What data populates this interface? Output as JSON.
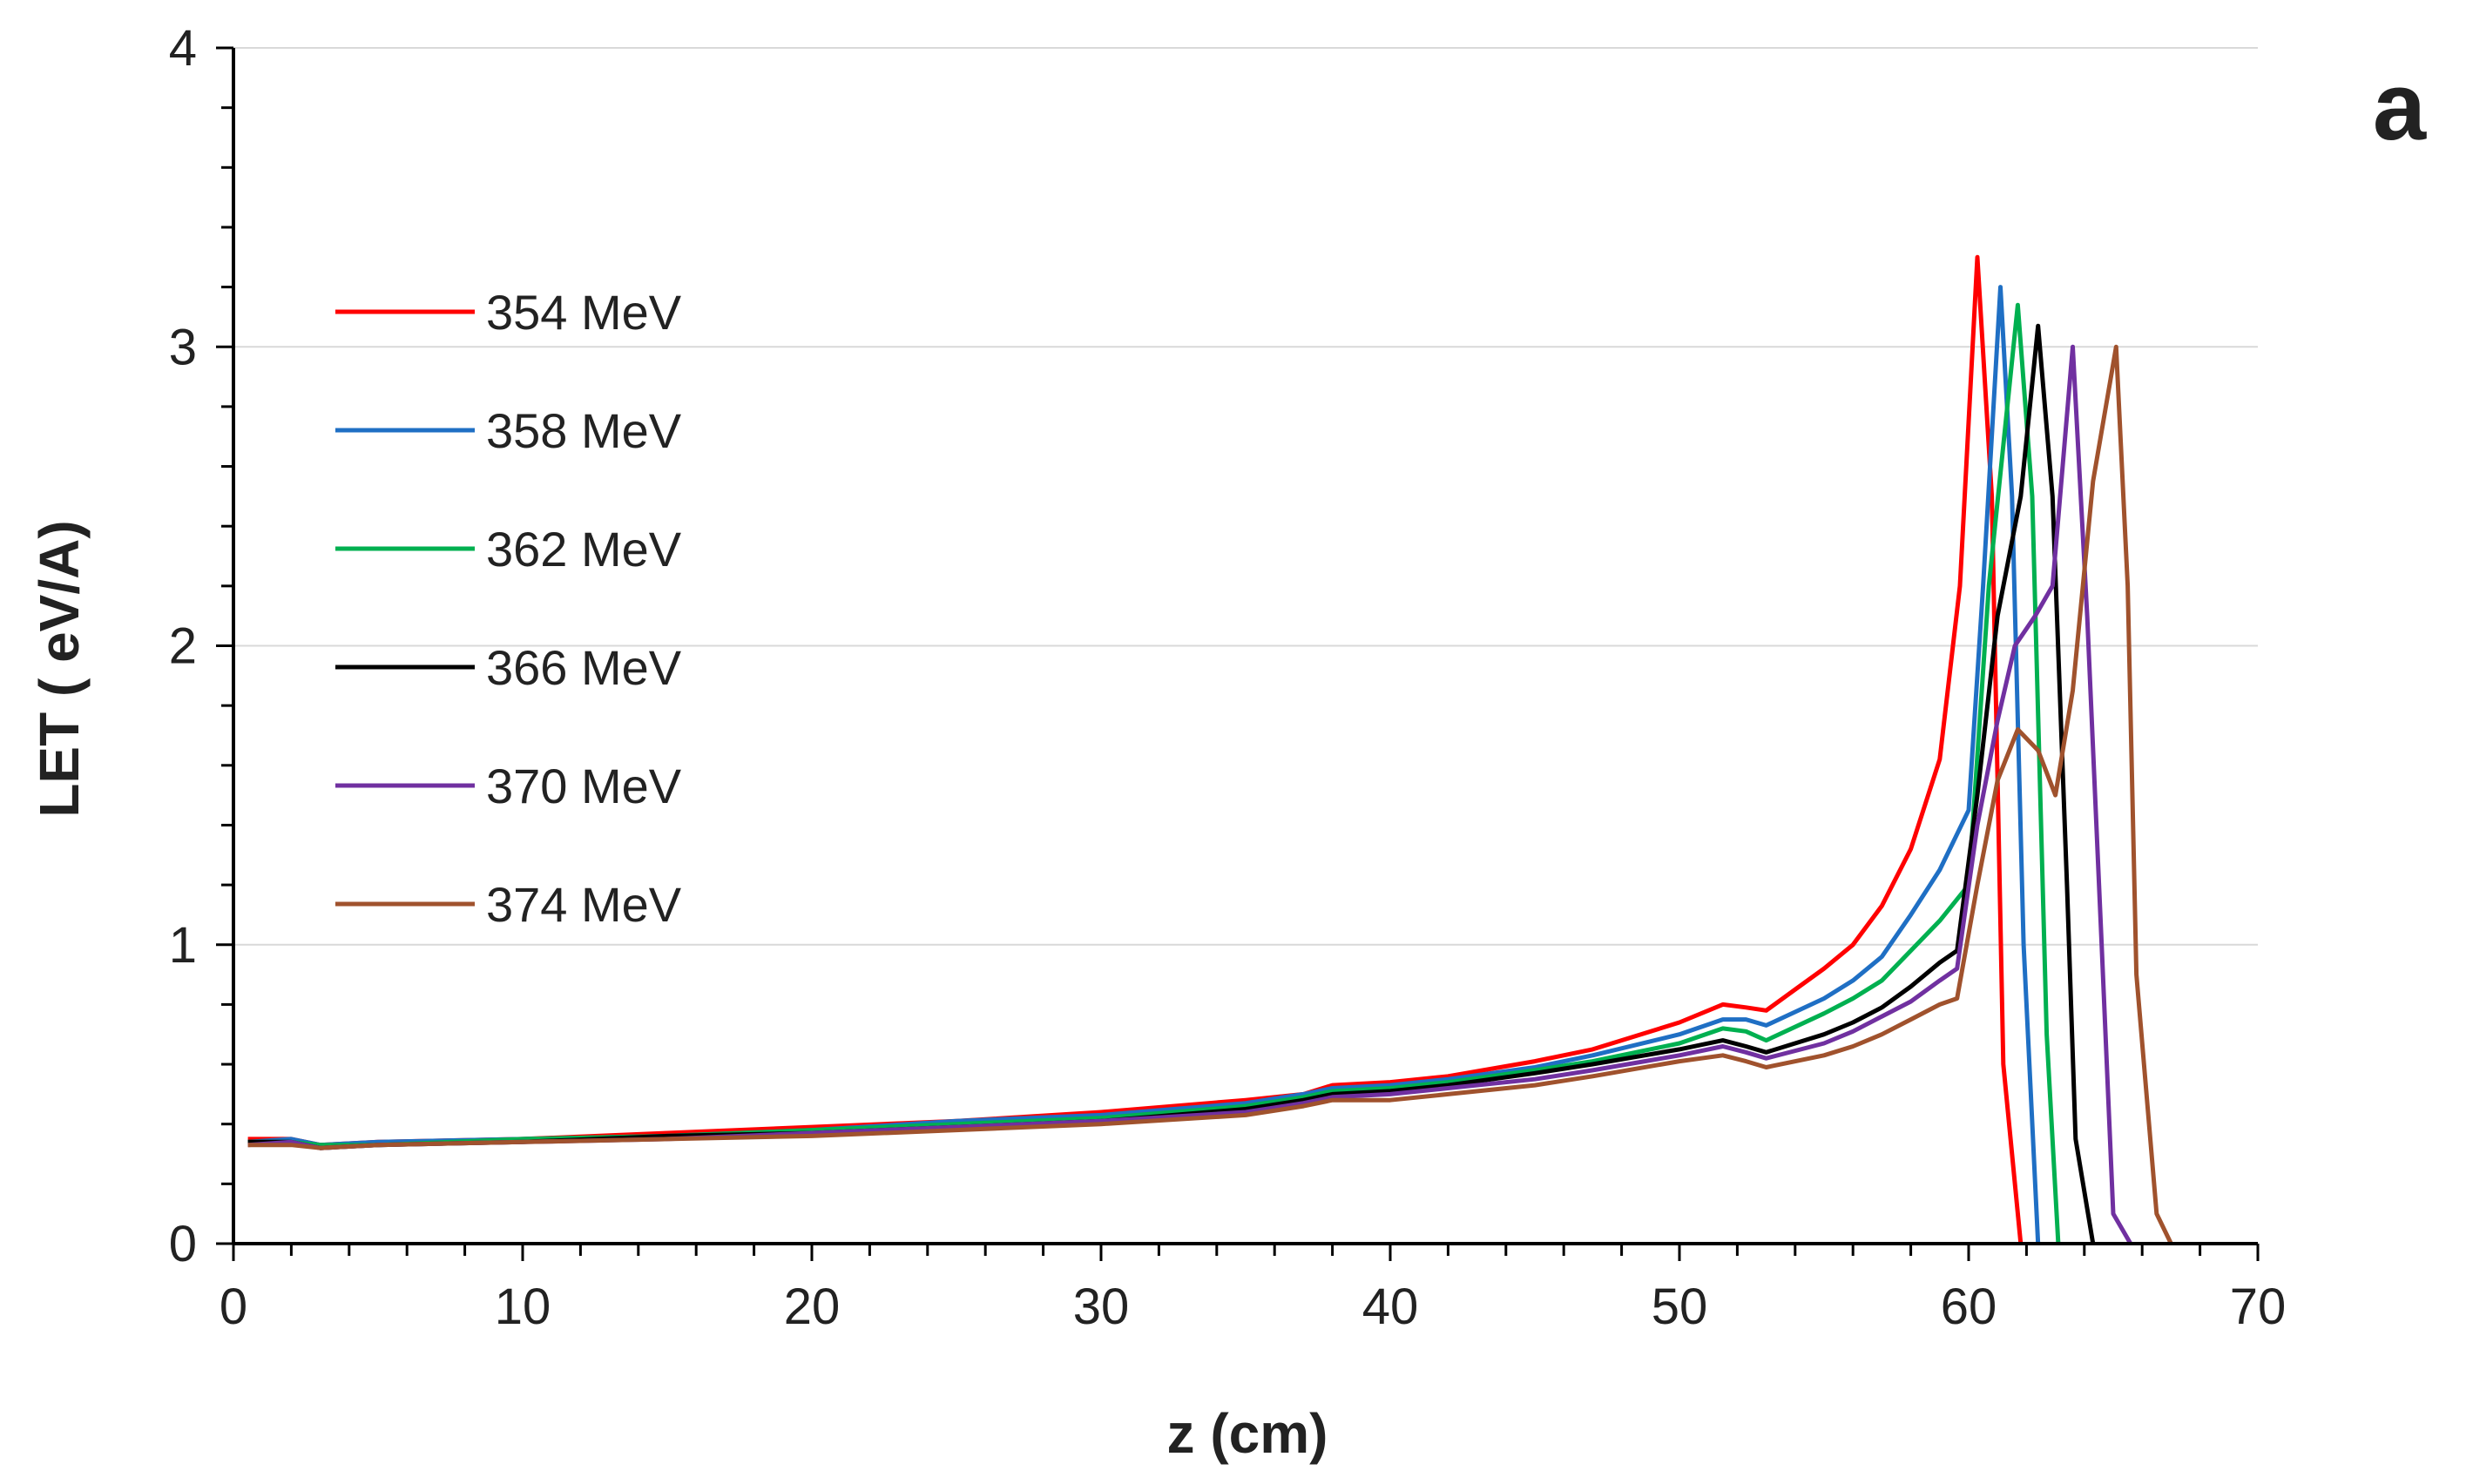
{
  "chart_data": {
    "type": "line",
    "panel_label": "a",
    "xlabel": "z (cm)",
    "ylabel": "LET ( eV/A)",
    "xlim": [
      0,
      70
    ],
    "ylim": [
      0,
      4
    ],
    "xticks": [
      0,
      10,
      20,
      30,
      40,
      50,
      60,
      70
    ],
    "yticks": [
      0,
      1,
      2,
      3,
      4
    ],
    "grid": "horizontal",
    "legend_position": "upper-left",
    "series": [
      {
        "name": "354 MeV",
        "color": "#ff0000",
        "points": [
          [
            0.5,
            0.35
          ],
          [
            2,
            0.35
          ],
          [
            3,
            0.33
          ],
          [
            5,
            0.34
          ],
          [
            10,
            0.35
          ],
          [
            15,
            0.37
          ],
          [
            20,
            0.39
          ],
          [
            25,
            0.41
          ],
          [
            30,
            0.44
          ],
          [
            35,
            0.48
          ],
          [
            37,
            0.5
          ],
          [
            38,
            0.53
          ],
          [
            40,
            0.54
          ],
          [
            42,
            0.56
          ],
          [
            45,
            0.61
          ],
          [
            47,
            0.65
          ],
          [
            48,
            0.68
          ],
          [
            50,
            0.74
          ],
          [
            51.5,
            0.8
          ],
          [
            52.3,
            0.79
          ],
          [
            53,
            0.78
          ],
          [
            54,
            0.85
          ],
          [
            55,
            0.92
          ],
          [
            56,
            1.0
          ],
          [
            57,
            1.13
          ],
          [
            58,
            1.32
          ],
          [
            59,
            1.62
          ],
          [
            59.7,
            2.2
          ],
          [
            60.3,
            3.3
          ],
          [
            60.8,
            2.5
          ],
          [
            61.2,
            0.6
          ],
          [
            61.8,
            0.0
          ]
        ]
      },
      {
        "name": "358 MeV",
        "color": "#1f6fc4",
        "points": [
          [
            0.5,
            0.34
          ],
          [
            2,
            0.35
          ],
          [
            3,
            0.33
          ],
          [
            5,
            0.34
          ],
          [
            10,
            0.35
          ],
          [
            15,
            0.36
          ],
          [
            20,
            0.38
          ],
          [
            25,
            0.41
          ],
          [
            30,
            0.43
          ],
          [
            35,
            0.47
          ],
          [
            37,
            0.5
          ],
          [
            38,
            0.52
          ],
          [
            40,
            0.53
          ],
          [
            42,
            0.55
          ],
          [
            45,
            0.59
          ],
          [
            47,
            0.63
          ],
          [
            50,
            0.7
          ],
          [
            51.5,
            0.75
          ],
          [
            52.3,
            0.75
          ],
          [
            53,
            0.73
          ],
          [
            55,
            0.82
          ],
          [
            56,
            0.88
          ],
          [
            57,
            0.96
          ],
          [
            58,
            1.1
          ],
          [
            59,
            1.25
          ],
          [
            60,
            1.45
          ],
          [
            60.5,
            2.2
          ],
          [
            61.1,
            3.2
          ],
          [
            61.5,
            2.5
          ],
          [
            61.9,
            1.0
          ],
          [
            62.4,
            0.0
          ]
        ]
      },
      {
        "name": "362 MeV",
        "color": "#00b050",
        "points": [
          [
            0.5,
            0.34
          ],
          [
            2,
            0.34
          ],
          [
            3,
            0.33
          ],
          [
            5,
            0.33
          ],
          [
            10,
            0.35
          ],
          [
            15,
            0.36
          ],
          [
            20,
            0.38
          ],
          [
            25,
            0.4
          ],
          [
            30,
            0.42
          ],
          [
            35,
            0.46
          ],
          [
            37,
            0.49
          ],
          [
            38,
            0.51
          ],
          [
            40,
            0.52
          ],
          [
            42,
            0.54
          ],
          [
            45,
            0.58
          ],
          [
            47,
            0.61
          ],
          [
            50,
            0.67
          ],
          [
            51.5,
            0.72
          ],
          [
            52.3,
            0.71
          ],
          [
            53,
            0.68
          ],
          [
            55,
            0.77
          ],
          [
            56,
            0.82
          ],
          [
            57,
            0.88
          ],
          [
            58,
            0.98
          ],
          [
            59,
            1.08
          ],
          [
            60,
            1.2
          ],
          [
            60.7,
            2.2
          ],
          [
            61.7,
            3.14
          ],
          [
            62.2,
            2.5
          ],
          [
            62.7,
            0.7
          ],
          [
            63.1,
            0.0
          ]
        ]
      },
      {
        "name": "366 MeV",
        "color": "#000000",
        "points": [
          [
            0.5,
            0.34
          ],
          [
            2,
            0.34
          ],
          [
            3,
            0.32
          ],
          [
            5,
            0.33
          ],
          [
            10,
            0.34
          ],
          [
            15,
            0.36
          ],
          [
            20,
            0.37
          ],
          [
            25,
            0.39
          ],
          [
            30,
            0.41
          ],
          [
            35,
            0.45
          ],
          [
            37,
            0.48
          ],
          [
            38,
            0.5
          ],
          [
            40,
            0.51
          ],
          [
            42,
            0.53
          ],
          [
            45,
            0.57
          ],
          [
            47,
            0.6
          ],
          [
            50,
            0.65
          ],
          [
            51.5,
            0.68
          ],
          [
            52.3,
            0.66
          ],
          [
            53,
            0.64
          ],
          [
            55,
            0.7
          ],
          [
            56,
            0.74
          ],
          [
            57,
            0.79
          ],
          [
            58,
            0.86
          ],
          [
            59,
            0.94
          ],
          [
            59.6,
            0.98
          ],
          [
            60.3,
            1.5
          ],
          [
            61,
            2.1
          ],
          [
            61.8,
            2.5
          ],
          [
            62.4,
            3.07
          ],
          [
            62.9,
            2.5
          ],
          [
            63.4,
            1.2
          ],
          [
            63.7,
            0.35
          ],
          [
            64.3,
            0.0
          ]
        ]
      },
      {
        "name": "370 MeV",
        "color": "#7030a0",
        "points": [
          [
            0.5,
            0.33
          ],
          [
            2,
            0.34
          ],
          [
            3,
            0.32
          ],
          [
            5,
            0.33
          ],
          [
            10,
            0.34
          ],
          [
            15,
            0.35
          ],
          [
            20,
            0.37
          ],
          [
            25,
            0.39
          ],
          [
            30,
            0.41
          ],
          [
            35,
            0.44
          ],
          [
            37,
            0.47
          ],
          [
            38,
            0.49
          ],
          [
            40,
            0.5
          ],
          [
            42,
            0.52
          ],
          [
            45,
            0.55
          ],
          [
            47,
            0.58
          ],
          [
            50,
            0.63
          ],
          [
            51.5,
            0.66
          ],
          [
            52.3,
            0.64
          ],
          [
            53,
            0.62
          ],
          [
            55,
            0.67
          ],
          [
            56,
            0.71
          ],
          [
            57,
            0.76
          ],
          [
            58,
            0.81
          ],
          [
            59,
            0.88
          ],
          [
            59.6,
            0.92
          ],
          [
            60.3,
            1.4
          ],
          [
            61,
            1.75
          ],
          [
            61.6,
            2.0
          ],
          [
            62.3,
            2.1
          ],
          [
            62.9,
            2.2
          ],
          [
            63.6,
            3.0
          ],
          [
            64.1,
            2.1
          ],
          [
            64.6,
            1.0
          ],
          [
            65,
            0.1
          ],
          [
            65.6,
            0.0
          ]
        ]
      },
      {
        "name": "374 MeV",
        "color": "#a0522d",
        "points": [
          [
            0.5,
            0.33
          ],
          [
            2,
            0.33
          ],
          [
            3,
            0.32
          ],
          [
            5,
            0.33
          ],
          [
            10,
            0.34
          ],
          [
            15,
            0.35
          ],
          [
            20,
            0.36
          ],
          [
            25,
            0.38
          ],
          [
            30,
            0.4
          ],
          [
            35,
            0.43
          ],
          [
            37,
            0.46
          ],
          [
            38,
            0.48
          ],
          [
            40,
            0.48
          ],
          [
            42,
            0.5
          ],
          [
            45,
            0.53
          ],
          [
            47,
            0.56
          ],
          [
            50,
            0.61
          ],
          [
            51.5,
            0.63
          ],
          [
            52.3,
            0.61
          ],
          [
            53,
            0.59
          ],
          [
            55,
            0.63
          ],
          [
            56,
            0.66
          ],
          [
            57,
            0.7
          ],
          [
            58,
            0.75
          ],
          [
            59,
            0.8
          ],
          [
            59.6,
            0.82
          ],
          [
            60.3,
            1.2
          ],
          [
            61,
            1.55
          ],
          [
            61.7,
            1.72
          ],
          [
            62.4,
            1.65
          ],
          [
            63,
            1.5
          ],
          [
            63.6,
            1.85
          ],
          [
            64.3,
            2.55
          ],
          [
            65.1,
            3.0
          ],
          [
            65.5,
            2.2
          ],
          [
            65.8,
            0.9
          ],
          [
            66.5,
            0.1
          ],
          [
            67,
            0.0
          ]
        ]
      }
    ]
  }
}
